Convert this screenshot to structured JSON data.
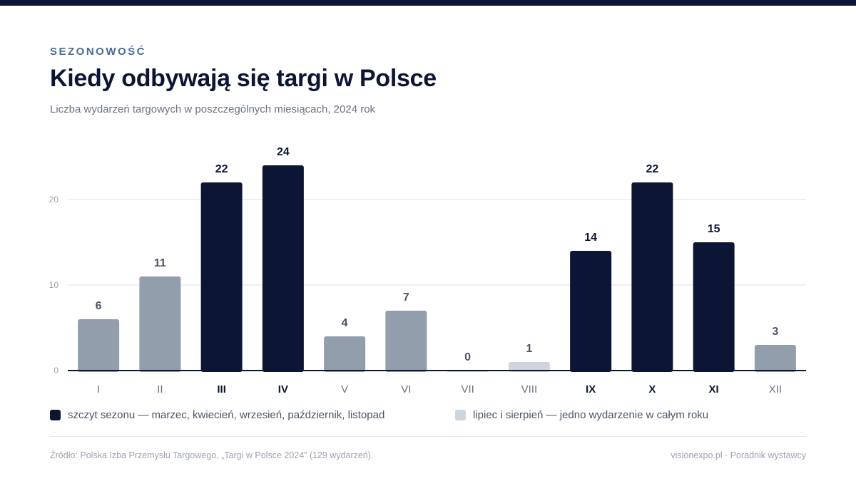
{
  "header": {
    "eyebrow": "SEZONOWOŚĆ",
    "title": "Kiedy odbywają się targi w Polsce",
    "subtitle": "Liczba wydarzeń targowych w poszczególnych miesiącach, 2024 rok"
  },
  "chart_data": {
    "type": "bar",
    "title": "",
    "xlabel": "",
    "ylabel": "",
    "categories": [
      "I",
      "II",
      "III",
      "IV",
      "V",
      "VI",
      "VII",
      "VIII",
      "IX",
      "X",
      "XI",
      "XII"
    ],
    "values": [
      6,
      11,
      22,
      24,
      4,
      7,
      0,
      1,
      14,
      22,
      15,
      3
    ],
    "highlight": [
      false,
      false,
      true,
      true,
      false,
      false,
      false,
      false,
      true,
      true,
      true,
      false
    ],
    "muted": [
      false,
      false,
      false,
      false,
      false,
      false,
      true,
      true,
      false,
      false,
      false,
      false
    ],
    "yticks": [
      0,
      10,
      20
    ],
    "ylim": [
      0,
      24
    ],
    "grid": true,
    "data_labels": true,
    "colors": {
      "peak": "#0c1634",
      "normal": "#939eac",
      "low": "#cfd5dc"
    }
  },
  "legend": {
    "peak_label": "szczyt sezonu — marzec, kwiecień, wrzesień, październik, listopad",
    "low_label": "lipiec i sierpień — jedno wydarzenie w całym roku",
    "peak_color": "#0c1634",
    "low_color": "#cfd5dc"
  },
  "footer": {
    "source": "Źródło: Polska Izba Przemysłu Targowego, „Targi w Polsce 2024” (129 wydarzeń).",
    "brand": "visionexpo.pl · Poradnik wystawcy"
  }
}
